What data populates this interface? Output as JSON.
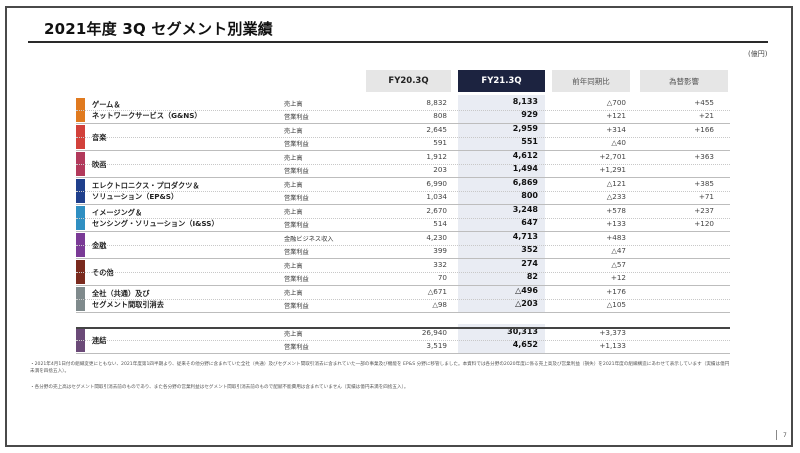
{
  "title": "2021年度 3Q セグメント別業績",
  "unit": "(億円)",
  "headers": {
    "prev": "FY20.3Q",
    "cur": "FY21.3Q",
    "yoy": "前年同期比",
    "fx": "為替影響"
  },
  "colors": {
    "header_dark": "#1c2340",
    "current_col": "#e9ecf3"
  },
  "segments": [
    {
      "name": "ゲーム＆\nネットワークサービス（G&NS）",
      "color": "#e07a1f",
      "rows": [
        {
          "label": "売上高",
          "prev": "8,832",
          "cur": "8,133",
          "yoy": "△700",
          "fx": "+455"
        },
        {
          "label": "営業利益",
          "prev": "808",
          "cur": "929",
          "yoy": "+121",
          "fx": "+21"
        }
      ]
    },
    {
      "name": "音楽",
      "color": "#d2413b",
      "rows": [
        {
          "label": "売上高",
          "prev": "2,645",
          "cur": "2,959",
          "yoy": "+314",
          "fx": "+166"
        },
        {
          "label": "営業利益",
          "prev": "591",
          "cur": "551",
          "yoy": "△40",
          "fx": ""
        }
      ]
    },
    {
      "name": "映画",
      "color": "#b2395b",
      "rows": [
        {
          "label": "売上高",
          "prev": "1,912",
          "cur": "4,612",
          "yoy": "+2,701",
          "fx": "+363"
        },
        {
          "label": "営業利益",
          "prev": "203",
          "cur": "1,494",
          "yoy": "+1,291",
          "fx": ""
        }
      ]
    },
    {
      "name": "エレクトロニクス・プロダクツ＆\nソリューション（EP&S）",
      "color": "#1f3f8c",
      "rows": [
        {
          "label": "売上高",
          "prev": "6,990",
          "cur": "6,869",
          "yoy": "△121",
          "fx": "+385"
        },
        {
          "label": "営業利益",
          "prev": "1,034",
          "cur": "800",
          "yoy": "△233",
          "fx": "+71"
        }
      ]
    },
    {
      "name": "イメージング＆\nセンシング・ソリューション（I&SS）",
      "color": "#2f8fc2",
      "rows": [
        {
          "label": "売上高",
          "prev": "2,670",
          "cur": "3,248",
          "yoy": "+578",
          "fx": "+237"
        },
        {
          "label": "営業利益",
          "prev": "514",
          "cur": "647",
          "yoy": "+133",
          "fx": "+120"
        }
      ]
    },
    {
      "name": "金融",
      "color": "#7a3a96",
      "rows": [
        {
          "label": "金融ビジネス収入",
          "prev": "4,230",
          "cur": "4,713",
          "yoy": "+483",
          "fx": ""
        },
        {
          "label": "営業利益",
          "prev": "399",
          "cur": "352",
          "yoy": "△47",
          "fx": ""
        }
      ]
    },
    {
      "name": "その他",
      "color": "#7a2a1e",
      "rows": [
        {
          "label": "売上高",
          "prev": "332",
          "cur": "274",
          "yoy": "△57",
          "fx": ""
        },
        {
          "label": "営業利益",
          "prev": "70",
          "cur": "82",
          "yoy": "+12",
          "fx": ""
        }
      ]
    },
    {
      "name": "全社（共通）及び\nセグメント間取引消去",
      "color": "#7f8a8c",
      "rows": [
        {
          "label": "売上高",
          "prev": "△671",
          "cur": "△496",
          "yoy": "+176",
          "fx": ""
        },
        {
          "label": "営業利益",
          "prev": "△98",
          "cur": "△203",
          "yoy": "△105",
          "fx": ""
        }
      ]
    }
  ],
  "total": {
    "name": "連結",
    "color": "#6b4a78",
    "rows": [
      {
        "label": "売上高",
        "prev": "26,940",
        "cur": "30,313",
        "yoy": "+3,373",
        "fx": ""
      },
      {
        "label": "営業利益",
        "prev": "3,519",
        "cur": "4,652",
        "yoy": "+1,133",
        "fx": ""
      }
    ]
  },
  "notes": [
    "・2021年4月1日付の組織変更にともない、2021年度第1四半期より、従来その他分野に含まれていた全社（共通）及びセグメント間取引消去に含まれていた一部の事業及び機能を EP&S 分野に移管しました。本資料では各分野の2020年度に係る売上高及び営業利益（損失）を2021年度の組織構造にあわせて表示しています（実績は億円未満を四捨五入）。",
    "・各分野の売上高はセグメント間取引消去前のものであり、また各分野の営業利益はセグメント間取引消去前のもので配賦不能費用は含まれていません（実績は億円未満を四捨五入）。"
  ],
  "page": "7"
}
